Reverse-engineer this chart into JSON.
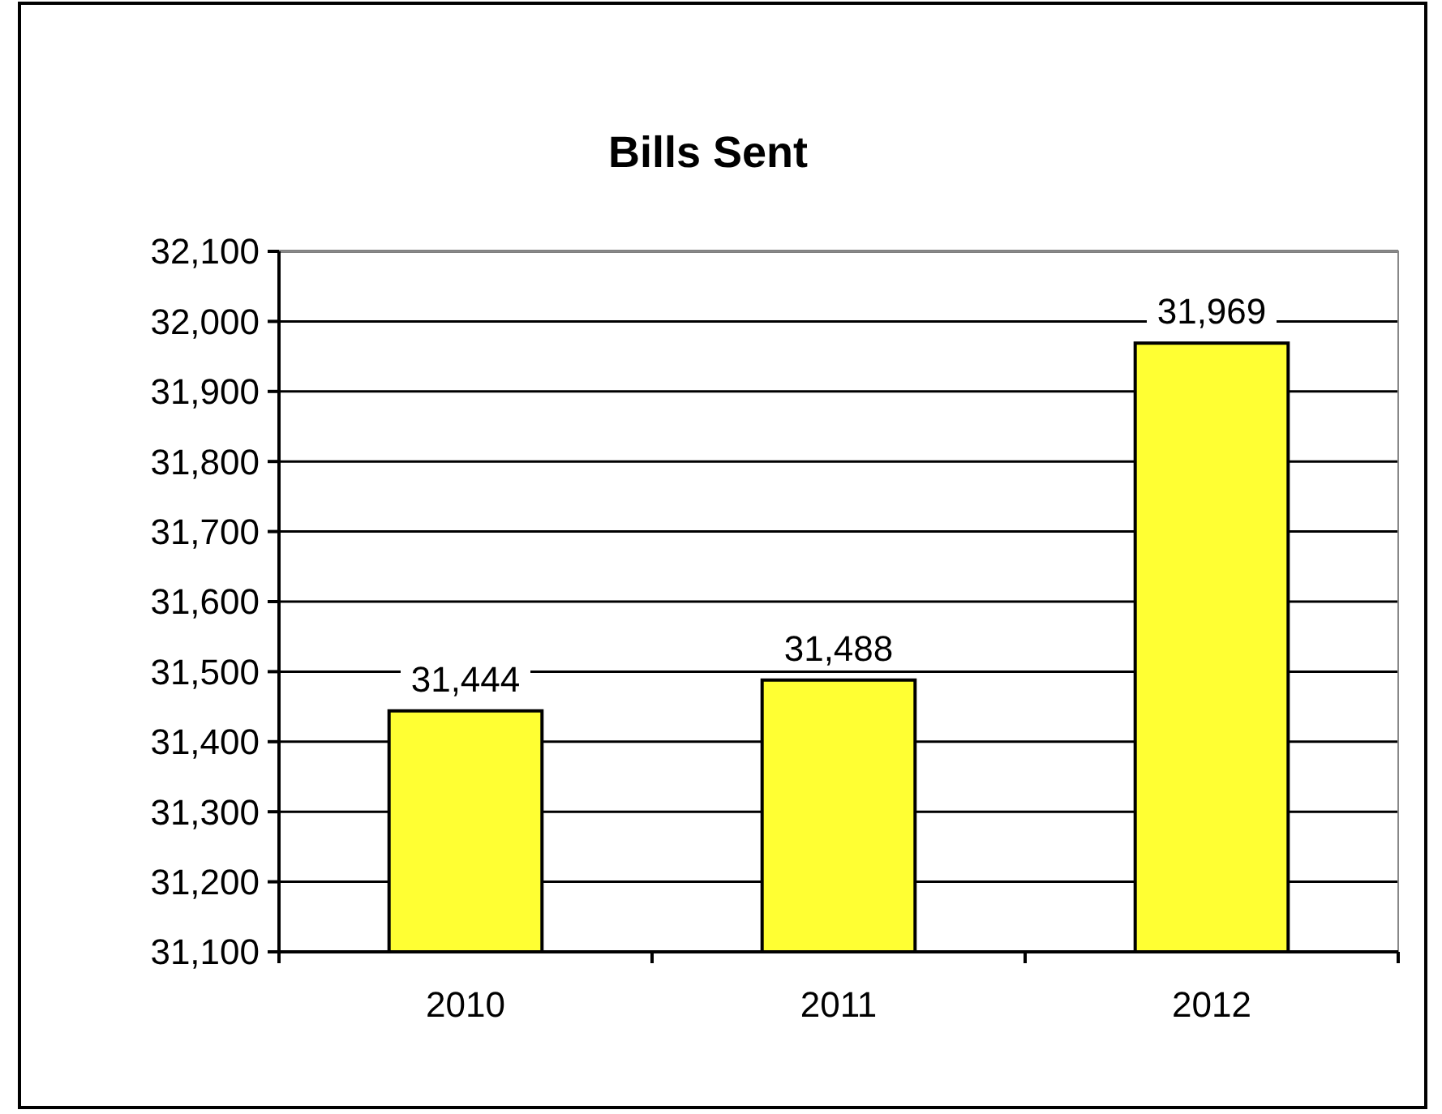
{
  "chart_data": {
    "type": "bar",
    "title": "Bills Sent",
    "categories": [
      "2010",
      "2011",
      "2012"
    ],
    "values": [
      31444,
      31488,
      31969
    ],
    "color": "#ffff33",
    "ylim": [
      31100,
      32100
    ],
    "yticks": [
      {
        "value": 31100,
        "label": "31,100"
      },
      {
        "value": 31200,
        "label": "31,200"
      },
      {
        "value": 31300,
        "label": "31,300"
      },
      {
        "value": 31400,
        "label": "31,400"
      },
      {
        "value": 31500,
        "label": "31,500"
      },
      {
        "value": 31600,
        "label": "31,600"
      },
      {
        "value": 31700,
        "label": "31,700"
      },
      {
        "value": 31800,
        "label": "31,800"
      },
      {
        "value": 31900,
        "label": "31,900"
      },
      {
        "value": 32000,
        "label": "32,000"
      },
      {
        "value": 32100,
        "label": "32,100"
      }
    ],
    "grid": "y",
    "value_labels": [
      "31,444",
      "31,488",
      "31,969"
    ]
  }
}
